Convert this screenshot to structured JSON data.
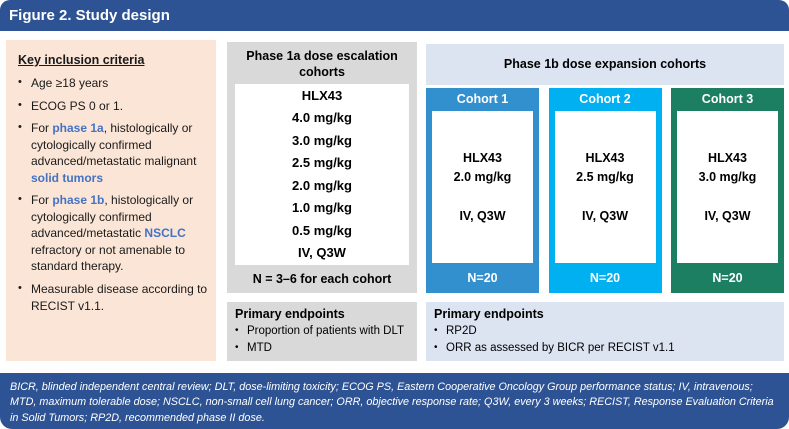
{
  "figure": {
    "title": "Figure 2. Study design"
  },
  "colors": {
    "header_bar": "#2E5394",
    "inclusion_bg": "#FBE5D6",
    "phase1a_bg": "#D9D9D9",
    "phase1b_bg": "#DCE3F1",
    "cohort1": "#3390CE",
    "cohort2": "#00B0F0",
    "cohort3": "#1C7F61",
    "accent_text": "#4472C4"
  },
  "inclusion": {
    "title": "Key inclusion criteria",
    "bullet1": "Age ≥18 years",
    "bullet2": "ECOG PS 0 or 1.",
    "bullet3": {
      "pre": "For ",
      "accent1": "phase 1a",
      "mid": ", histologically or cytologically confirmed advanced/metastatic malignant ",
      "accent2": "solid tumors"
    },
    "bullet4": {
      "pre": "For ",
      "accent1": "phase 1b",
      "mid": ", histologically or cytologically confirmed advanced/metastatic ",
      "accent2": "NSCLC",
      "post": " refractory or not amenable to standard therapy."
    },
    "bullet5": "Measurable disease according to RECIST v1.1."
  },
  "phase1a": {
    "title": "Phase 1a dose escalation cohorts",
    "drug": "HLX43",
    "doses": [
      "4.0 mg/kg",
      "3.0 mg/kg",
      "2.5 mg/kg",
      "2.0 mg/kg",
      "1.0 mg/kg",
      "0.5 mg/kg"
    ],
    "schedule": "IV, Q3W",
    "cohort_size": "N = 3–6 for each cohort",
    "endpoints": {
      "title": "Primary endpoints",
      "items": [
        "Proportion of patients with DLT",
        "MTD"
      ]
    }
  },
  "phase1b": {
    "title": "Phase 1b dose expansion cohorts",
    "cohorts": [
      {
        "label": "Cohort 1",
        "drug": "HLX43",
        "dose": "2.0 mg/kg",
        "schedule": "IV, Q3W",
        "n": "N=20"
      },
      {
        "label": "Cohort 2",
        "drug": "HLX43",
        "dose": "2.5 mg/kg",
        "schedule": "IV, Q3W",
        "n": "N=20"
      },
      {
        "label": "Cohort 3",
        "drug": "HLX43",
        "dose": "3.0 mg/kg",
        "schedule": "IV, Q3W",
        "n": "N=20"
      }
    ],
    "endpoints": {
      "title": "Primary endpoints",
      "items": [
        "RP2D",
        "ORR as assessed by BICR per RECIST v1.1"
      ]
    }
  },
  "footnote": "BICR, blinded independent central review; DLT, dose-limiting toxicity; ECOG PS, Eastern Cooperative Oncology Group performance status; IV, intravenous; MTD, maximum tolerable dose; NSCLC, non-small cell lung cancer; ORR, objective response rate; Q3W, every 3 weeks; RECIST, Response Evaluation Criteria in Solid Tumors; RP2D, recommended phase II dose."
}
